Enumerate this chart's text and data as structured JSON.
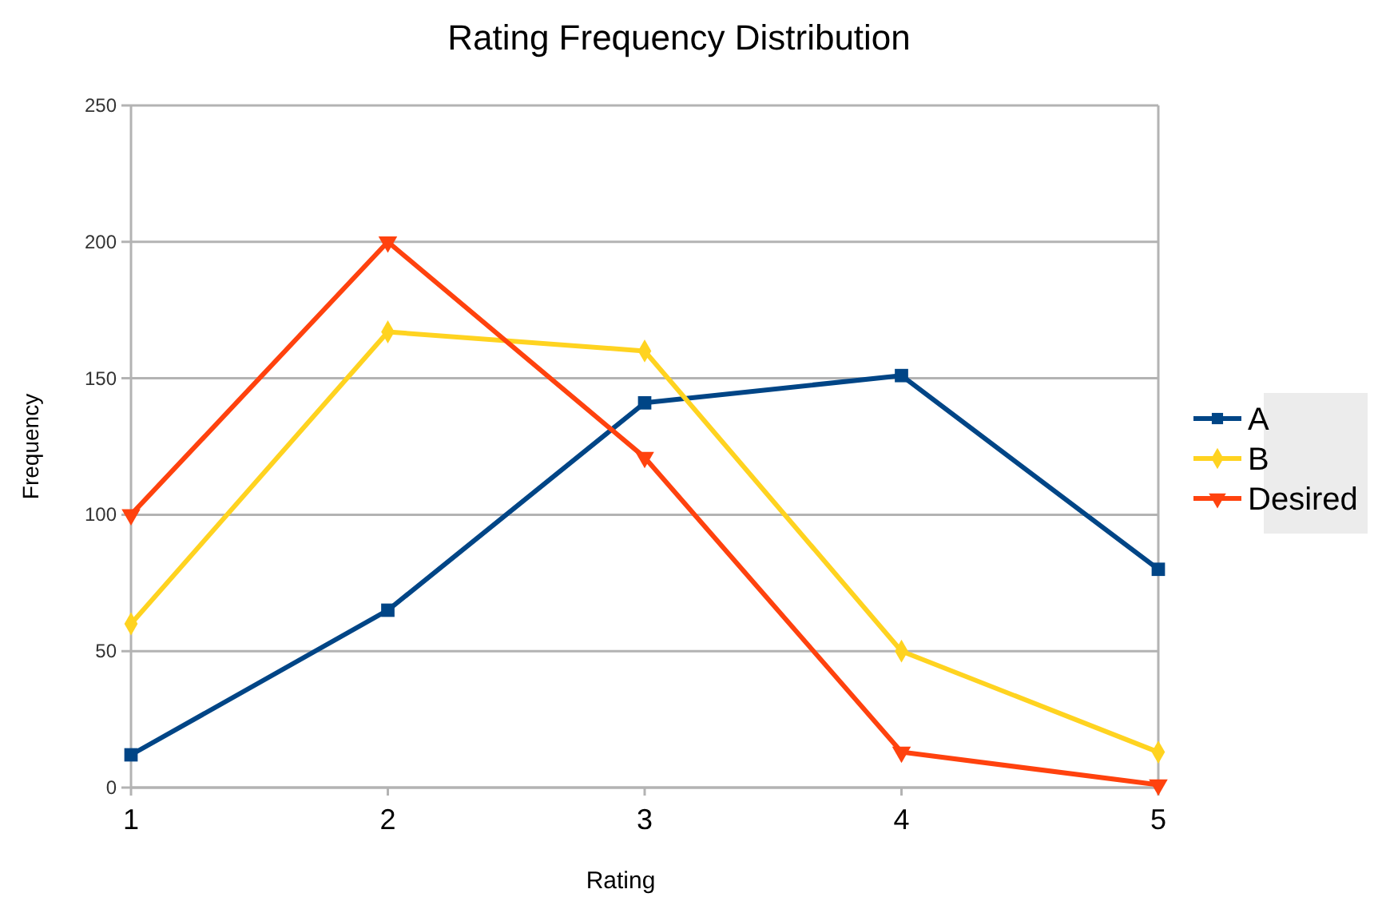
{
  "chart_data": {
    "type": "line",
    "title": "Rating Frequency Distribution",
    "xlabel": "Rating",
    "ylabel": "Frequency",
    "x": [
      1,
      2,
      3,
      4,
      5
    ],
    "xlim": [
      1,
      5
    ],
    "xticks": [
      1,
      2,
      3,
      4,
      5
    ],
    "ylim": [
      0,
      250
    ],
    "yticks": [
      0,
      50,
      100,
      150,
      200,
      250
    ],
    "grid": "y",
    "legend": "right",
    "line_style": "solid",
    "series": [
      {
        "name": "A",
        "color": "#004586",
        "marker": "square",
        "values": [
          12,
          65,
          141,
          151,
          80
        ]
      },
      {
        "name": "B",
        "color": "#ffd320",
        "marker": "diamond",
        "values": [
          60,
          167,
          160,
          50,
          13
        ]
      },
      {
        "name": "Desired",
        "color": "#ff420e",
        "marker": "triangle",
        "values": [
          100,
          200,
          121,
          13,
          1
        ]
      }
    ]
  }
}
